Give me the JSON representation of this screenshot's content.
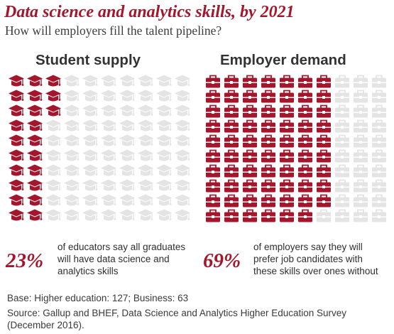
{
  "title": "Data science and analytics skills, by 2021",
  "subtitle": "How will employers fill the talent pipeline?",
  "colors": {
    "accent": "#a3162c",
    "inactive": "#e4e4e4"
  },
  "panels": {
    "supply": {
      "title": "Student supply",
      "icon": "graduation-cap-icon",
      "percent_label": "23%",
      "description": "of educators say all graduates\nwill have data science and\nanalytics skills"
    },
    "demand": {
      "title": "Employer demand",
      "icon": "briefcase-icon",
      "percent_label": "69%",
      "description": "of employers say they will\nprefer job candidates with\nthese skills over ones without"
    }
  },
  "footnotes": {
    "base": "Base: Higher education: 127; Business: 63",
    "source": "Source: Gallup and BHEF, Data Science and Analytics Higher Education Survey (December 2016)."
  },
  "chart_data": [
    {
      "type": "pictograph",
      "title": "Student supply",
      "unit_icon": "graduation-cap",
      "total_units": 100,
      "highlighted_units": 23,
      "value_percent": 23
    },
    {
      "type": "pictograph",
      "title": "Employer demand",
      "unit_icon": "briefcase",
      "total_units": 100,
      "highlighted_units": 69,
      "value_percent": 69
    }
  ]
}
